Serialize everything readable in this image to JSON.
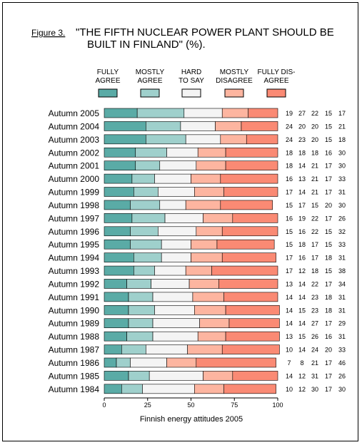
{
  "figure_label": "Figure 3.",
  "title_lines": [
    "\"THE FIFTH NUCLEAR POWER PLANT SHOULD BE",
    "BUILT IN FINLAND\" (%)."
  ],
  "footer": "Finnish energy attitudes 2005",
  "chart_data": {
    "type": "bar",
    "stacked": true,
    "orientation": "horizontal",
    "xlim": [
      0,
      100
    ],
    "x_ticks": [
      0,
      25,
      50,
      75,
      100
    ],
    "grid": false,
    "legend_position": "top",
    "categories": [
      "Autumn 2005",
      "Autumn 2004",
      "Autumn 2003",
      "Autumn 2002",
      "Autumn 2001",
      "Autumn 2000",
      "Autumn 1999",
      "Autumn 1998",
      "Autumn 1997",
      "Autumn 1996",
      "Autumn 1995",
      "Autumn 1994",
      "Autumn 1993",
      "Autumn 1992",
      "Autumn 1991",
      "Autumn 1990",
      "Autumn 1989",
      "Autumn 1988",
      "Autumn 1987",
      "Autumn 1986",
      "Autumn 1985",
      "Autumn 1984"
    ],
    "series": [
      {
        "name": "FULLY AGREE",
        "label_lines": [
          "FULLY",
          "AGREE"
        ],
        "color": "#5aaba6",
        "values": [
          19,
          24,
          24,
          18,
          18,
          16,
          17,
          15,
          16,
          15,
          15,
          17,
          17,
          13,
          14,
          14,
          14,
          13,
          10,
          7,
          14,
          10
        ]
      },
      {
        "name": "MOSTLY AGREE",
        "label_lines": [
          "MOSTLY",
          "AGREE"
        ],
        "color": "#9fd0cc",
        "values": [
          27,
          20,
          23,
          18,
          14,
          13,
          14,
          17,
          19,
          16,
          18,
          16,
          12,
          14,
          14,
          15,
          14,
          15,
          14,
          8,
          12,
          12
        ]
      },
      {
        "name": "HARD TO SAY",
        "label_lines": [
          "HARD",
          "TO SAY"
        ],
        "color": "#f4f4f4",
        "values": [
          22,
          20,
          20,
          18,
          21,
          21,
          21,
          15,
          22,
          22,
          17,
          17,
          18,
          22,
          23,
          23,
          27,
          26,
          24,
          21,
          31,
          30
        ]
      },
      {
        "name": "MOSTLY DISAGREE",
        "label_lines": [
          "MOSTLY",
          "DISAGREE"
        ],
        "color": "#fdb5a0",
        "values": [
          15,
          15,
          15,
          16,
          17,
          17,
          17,
          20,
          17,
          15,
          15,
          18,
          15,
          17,
          18,
          18,
          17,
          16,
          20,
          17,
          17,
          17
        ]
      },
      {
        "name": "FULLY DISAGREE",
        "label_lines": [
          "FULLY DIS-",
          "AGREE"
        ],
        "color": "#fa8a74",
        "values": [
          17,
          21,
          18,
          30,
          30,
          33,
          31,
          30,
          26,
          32,
          33,
          31,
          38,
          34,
          31,
          31,
          29,
          31,
          33,
          46,
          26,
          30
        ]
      }
    ]
  }
}
